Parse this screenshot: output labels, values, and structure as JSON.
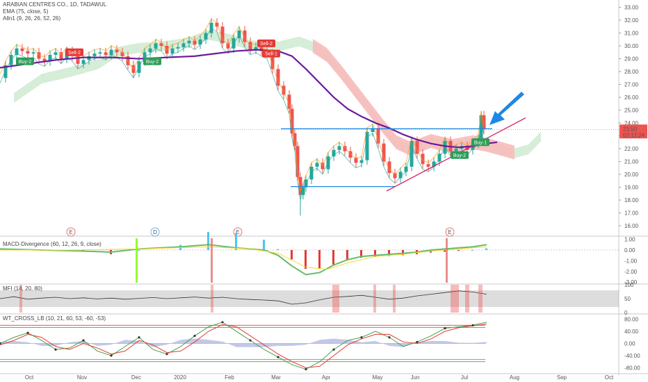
{
  "header": {
    "symbol_line": "ARABIAN CENTRES CO., 1D, TADAWUL",
    "ema_line": "EMA (75, close, 5)",
    "alln_line": "Alln1 (9, 26, 26, 52, 26)"
  },
  "indicators": {
    "macd_label": "MACD-Divergence (60, 12, 26, 9, close)",
    "mfi_label": "MFI (14, 20, 80)",
    "wt_label": "WT_CROSS_LB (10, 21, 60, 53, -60, -53)"
  },
  "colors": {
    "up": "#26a69a",
    "down": "#ef5350",
    "ema": "#6a1b9a",
    "cloud_up": "#a5d6a7",
    "cloud_down": "#f8bbbb",
    "trend": "#d81b60",
    "level": "#1e88e5",
    "arrow": "#1e88e5"
  },
  "chart_data": {
    "type": "candlestick",
    "symbol": "ARABIAN CENTRES CO.",
    "interval": "1D",
    "exchange": "TADAWUL",
    "x_tick_labels": [
      "Oct",
      "Nov",
      "Dec",
      "2020",
      "Feb",
      "Mar",
      "Apr",
      "May",
      "Jun",
      "Jul",
      "Aug",
      "Sep",
      "Oct"
    ],
    "price_axis": {
      "ticks": [
        "33.00",
        "32.00",
        "31.00",
        "30.00",
        "29.00",
        "28.00",
        "27.00",
        "26.00",
        "25.00",
        "24.00",
        "23.00",
        "22.00",
        "21.00",
        "20.00",
        "19.00",
        "18.00",
        "17.00",
        "16.00"
      ],
      "range": [
        15.3,
        33.3
      ]
    },
    "last_price": "23.50",
    "countdown": "02:12:24",
    "price_path": [
      [
        0,
        27.5
      ],
      [
        8,
        28.5
      ],
      [
        16,
        29.3
      ],
      [
        24,
        29.8
      ],
      [
        32,
        29.6
      ],
      [
        40,
        29.4
      ],
      [
        48,
        29.5
      ],
      [
        56,
        29.0
      ],
      [
        64,
        28.8
      ],
      [
        72,
        29.3
      ],
      [
        80,
        29.5
      ],
      [
        88,
        29.0
      ],
      [
        96,
        29.6
      ],
      [
        104,
        29.2
      ],
      [
        112,
        28.6
      ],
      [
        120,
        28.9
      ],
      [
        128,
        29.2
      ],
      [
        136,
        29.4
      ],
      [
        144,
        29.5
      ],
      [
        152,
        29.3
      ],
      [
        160,
        29.7
      ],
      [
        168,
        29.5
      ],
      [
        176,
        29.2
      ],
      [
        184,
        28.5
      ],
      [
        192,
        27.9
      ],
      [
        200,
        28.8
      ],
      [
        208,
        29.5
      ],
      [
        216,
        29.8
      ],
      [
        224,
        30.2
      ],
      [
        232,
        30.0
      ],
      [
        240,
        29.4
      ],
      [
        248,
        29.8
      ],
      [
        256,
        29.9
      ],
      [
        264,
        30.2
      ],
      [
        272,
        30.4
      ],
      [
        280,
        30.1
      ],
      [
        288,
        30.5
      ],
      [
        296,
        31.0
      ],
      [
        304,
        31.8
      ],
      [
        312,
        31.5
      ],
      [
        320,
        30.2
      ],
      [
        328,
        29.8
      ],
      [
        336,
        30.6
      ],
      [
        344,
        31.2
      ],
      [
        352,
        30.3
      ],
      [
        360,
        29.7
      ],
      [
        368,
        29.9
      ],
      [
        376,
        29.6
      ],
      [
        384,
        29.4
      ],
      [
        392,
        28.2
      ],
      [
        400,
        26.9
      ],
      [
        408,
        26.2
      ],
      [
        416,
        25.1
      ],
      [
        420,
        23.2
      ],
      [
        424,
        22.2
      ],
      [
        428,
        19.8
      ],
      [
        432,
        18.4
      ],
      [
        436,
        19.0
      ],
      [
        440,
        19.6
      ],
      [
        448,
        20.6
      ],
      [
        456,
        20.9
      ],
      [
        464,
        20.4
      ],
      [
        472,
        21.4
      ],
      [
        480,
        21.9
      ],
      [
        488,
        22.2
      ],
      [
        496,
        21.8
      ],
      [
        504,
        21.3
      ],
      [
        512,
        20.9
      ],
      [
        520,
        21.1
      ],
      [
        528,
        23.3
      ],
      [
        536,
        23.6
      ],
      [
        544,
        22.4
      ],
      [
        552,
        21.0
      ],
      [
        560,
        20.1
      ],
      [
        568,
        19.7
      ],
      [
        576,
        20.2
      ],
      [
        584,
        20.6
      ],
      [
        592,
        22.6
      ],
      [
        600,
        21.6
      ],
      [
        608,
        20.8
      ],
      [
        616,
        20.6
      ],
      [
        624,
        21.0
      ],
      [
        632,
        21.6
      ],
      [
        640,
        22.6
      ],
      [
        648,
        21.8
      ],
      [
        656,
        22.0
      ],
      [
        664,
        22.2
      ],
      [
        672,
        21.9
      ],
      [
        680,
        22.4
      ],
      [
        688,
        22.8
      ],
      [
        692,
        24.6
      ],
      [
        696,
        23.5
      ]
    ],
    "ema_path": [
      [
        0,
        28.3
      ],
      [
        40,
        28.6
      ],
      [
        80,
        28.9
      ],
      [
        120,
        29.1
      ],
      [
        160,
        29.1
      ],
      [
        200,
        29.0
      ],
      [
        240,
        29.1
      ],
      [
        280,
        29.2
      ],
      [
        310,
        29.4
      ],
      [
        340,
        29.6
      ],
      [
        370,
        29.7
      ],
      [
        400,
        29.6
      ],
      [
        420,
        29.2
      ],
      [
        440,
        28.2
      ],
      [
        460,
        27.1
      ],
      [
        480,
        26.0
      ],
      [
        500,
        25.1
      ],
      [
        520,
        24.5
      ],
      [
        540,
        24.0
      ],
      [
        560,
        23.6
      ],
      [
        580,
        23.1
      ],
      [
        600,
        22.7
      ],
      [
        620,
        22.4
      ],
      [
        640,
        22.2
      ],
      [
        660,
        22.1
      ],
      [
        680,
        22.2
      ],
      [
        700,
        22.4
      ],
      [
        715,
        22.5
      ]
    ],
    "cloud_path": [
      [
        20,
        26.0
      ],
      [
        60,
        27.5
      ],
      [
        100,
        28.0
      ],
      [
        140,
        28.6
      ],
      [
        170,
        29.6
      ],
      [
        200,
        29.9
      ],
      [
        230,
        30.0
      ],
      [
        270,
        30.3
      ],
      [
        300,
        30.9
      ],
      [
        330,
        30.6
      ],
      [
        360,
        30.1
      ],
      [
        400,
        30.0
      ],
      [
        430,
        30.4
      ],
      [
        450,
        30.0
      ],
      [
        470,
        29.3
      ],
      [
        490,
        28.0
      ],
      [
        510,
        26.6
      ],
      [
        530,
        25.2
      ],
      [
        550,
        23.8
      ],
      [
        570,
        22.5
      ],
      [
        590,
        22.0
      ],
      [
        620,
        22.6
      ],
      [
        650,
        22.2
      ],
      [
        680,
        22.5
      ],
      [
        700,
        22.3
      ],
      [
        720,
        22.0
      ],
      [
        740,
        21.7
      ],
      [
        760,
        22.0
      ],
      [
        778,
        23.0
      ]
    ],
    "levels": [
      {
        "label": "upper horizontal resistance",
        "y": 23.55,
        "x": [
          404,
          708
        ]
      },
      {
        "label": "lower horizontal support",
        "y": 19.05,
        "x": [
          418,
          568
        ]
      }
    ],
    "trendline": {
      "from": [
        556,
        18.7
      ],
      "to": [
        756,
        24.4
      ]
    },
    "signals": [
      {
        "label": "Buy-2",
        "x": 36,
        "price": 28.8,
        "kind": "buy"
      },
      {
        "label": "Sell-2",
        "x": 107,
        "price": 29.5,
        "kind": "sell"
      },
      {
        "label": "Buy-2",
        "x": 219,
        "price": 28.8,
        "kind": "buy"
      },
      {
        "label": "Sell-2",
        "x": 383,
        "price": 30.2,
        "kind": "sell"
      },
      {
        "label": "Sell-1",
        "x": 390,
        "price": 29.4,
        "kind": "sell"
      },
      {
        "label": "Buy-2",
        "x": 661,
        "price": 21.5,
        "kind": "buy"
      },
      {
        "label": "Buy-1",
        "x": 691,
        "price": 22.5,
        "kind": "buy"
      }
    ],
    "event_markers": [
      {
        "label": "E",
        "x": 102,
        "color": "#e57373"
      },
      {
        "label": "D",
        "x": 223,
        "color": "#64b5f6"
      },
      {
        "label": "E",
        "x": 342,
        "color": "#e57373"
      },
      {
        "label": "E",
        "x": 647,
        "color": "#e57373"
      }
    ],
    "macd": {
      "ticks": [
        "1.00",
        "0.00",
        "-1.00",
        "-2.00",
        "-3.00"
      ],
      "range": [
        -3.05,
        1.1
      ],
      "macd_line": [
        [
          0,
          0.1
        ],
        [
          60,
          0.0
        ],
        [
          120,
          -0.1
        ],
        [
          160,
          -0.2
        ],
        [
          200,
          0.1
        ],
        [
          260,
          0.3
        ],
        [
          300,
          0.5
        ],
        [
          340,
          0.2
        ],
        [
          380,
          0.0
        ],
        [
          400,
          -0.5
        ],
        [
          420,
          -1.5
        ],
        [
          440,
          -2.3
        ],
        [
          460,
          -2.1
        ],
        [
          480,
          -1.4
        ],
        [
          500,
          -0.9
        ],
        [
          520,
          -0.6
        ],
        [
          540,
          -0.5
        ],
        [
          560,
          -0.4
        ],
        [
          580,
          -0.3
        ],
        [
          600,
          -0.2
        ],
        [
          620,
          0.0
        ],
        [
          640,
          0.1
        ],
        [
          660,
          0.2
        ],
        [
          680,
          0.3
        ],
        [
          700,
          0.5
        ]
      ],
      "signal_line": [
        [
          0,
          0.0
        ],
        [
          100,
          0.0
        ],
        [
          200,
          0.1
        ],
        [
          300,
          0.3
        ],
        [
          360,
          0.1
        ],
        [
          400,
          -0.3
        ],
        [
          440,
          -1.6
        ],
        [
          470,
          -1.8
        ],
        [
          500,
          -1.2
        ],
        [
          540,
          -0.6
        ],
        [
          580,
          -0.4
        ],
        [
          620,
          -0.1
        ],
        [
          660,
          0.1
        ],
        [
          700,
          0.3
        ]
      ]
    },
    "mfi": {
      "ticks": [
        "100",
        "50",
        "0"
      ],
      "range": [
        0,
        100
      ],
      "band": [
        20,
        80
      ],
      "values": [
        [
          0,
          50
        ],
        [
          20,
          57
        ],
        [
          40,
          48
        ],
        [
          60,
          52
        ],
        [
          80,
          55
        ],
        [
          100,
          50
        ],
        [
          120,
          53
        ],
        [
          140,
          49
        ],
        [
          160,
          52
        ],
        [
          180,
          48
        ],
        [
          200,
          51
        ],
        [
          220,
          54
        ],
        [
          240,
          50
        ],
        [
          260,
          53
        ],
        [
          280,
          56
        ],
        [
          300,
          52
        ],
        [
          320,
          55
        ],
        [
          340,
          50
        ],
        [
          360,
          47
        ],
        [
          380,
          45
        ],
        [
          400,
          42
        ],
        [
          420,
          30
        ],
        [
          440,
          35
        ],
        [
          460,
          46
        ],
        [
          480,
          55
        ],
        [
          500,
          58
        ],
        [
          520,
          62
        ],
        [
          540,
          55
        ],
        [
          560,
          48
        ],
        [
          580,
          52
        ],
        [
          600,
          60
        ],
        [
          620,
          66
        ],
        [
          640,
          72
        ],
        [
          660,
          78
        ],
        [
          680,
          74
        ],
        [
          700,
          66
        ]
      ]
    },
    "wt_cross": {
      "ticks": [
        "80.00",
        "40.00",
        "0.00",
        "-40.00",
        "-80.00"
      ],
      "range": [
        -95,
        95
      ],
      "overbought": [
        60,
        53
      ],
      "oversold": [
        -60,
        -53
      ],
      "wt1": [
        [
          0,
          0
        ],
        [
          20,
          20
        ],
        [
          40,
          35
        ],
        [
          60,
          10
        ],
        [
          80,
          -20
        ],
        [
          100,
          -15
        ],
        [
          120,
          10
        ],
        [
          140,
          -25
        ],
        [
          160,
          -40
        ],
        [
          180,
          -10
        ],
        [
          200,
          20
        ],
        [
          220,
          -20
        ],
        [
          240,
          -35
        ],
        [
          260,
          -10
        ],
        [
          280,
          25
        ],
        [
          300,
          55
        ],
        [
          320,
          70
        ],
        [
          340,
          40
        ],
        [
          360,
          10
        ],
        [
          380,
          -20
        ],
        [
          400,
          -45
        ],
        [
          420,
          -70
        ],
        [
          440,
          -85
        ],
        [
          460,
          -60
        ],
        [
          480,
          -20
        ],
        [
          500,
          10
        ],
        [
          520,
          20
        ],
        [
          540,
          40
        ],
        [
          560,
          20
        ],
        [
          580,
          -10
        ],
        [
          600,
          5
        ],
        [
          620,
          25
        ],
        [
          640,
          50
        ],
        [
          660,
          55
        ],
        [
          680,
          60
        ],
        [
          700,
          70
        ]
      ],
      "wt2": [
        [
          0,
          -5
        ],
        [
          20,
          10
        ],
        [
          40,
          30
        ],
        [
          60,
          20
        ],
        [
          80,
          -10
        ],
        [
          100,
          -20
        ],
        [
          120,
          0
        ],
        [
          140,
          -15
        ],
        [
          160,
          -35
        ],
        [
          180,
          -25
        ],
        [
          200,
          10
        ],
        [
          220,
          -5
        ],
        [
          240,
          -30
        ],
        [
          260,
          -25
        ],
        [
          280,
          5
        ],
        [
          300,
          40
        ],
        [
          320,
          62
        ],
        [
          340,
          55
        ],
        [
          360,
          25
        ],
        [
          380,
          -5
        ],
        [
          400,
          -35
        ],
        [
          420,
          -60
        ],
        [
          440,
          -80
        ],
        [
          460,
          -75
        ],
        [
          480,
          -40
        ],
        [
          500,
          -5
        ],
        [
          520,
          15
        ],
        [
          540,
          30
        ],
        [
          560,
          30
        ],
        [
          580,
          5
        ],
        [
          600,
          0
        ],
        [
          620,
          15
        ],
        [
          640,
          40
        ],
        [
          660,
          52
        ],
        [
          680,
          58
        ],
        [
          700,
          64
        ]
      ]
    }
  }
}
